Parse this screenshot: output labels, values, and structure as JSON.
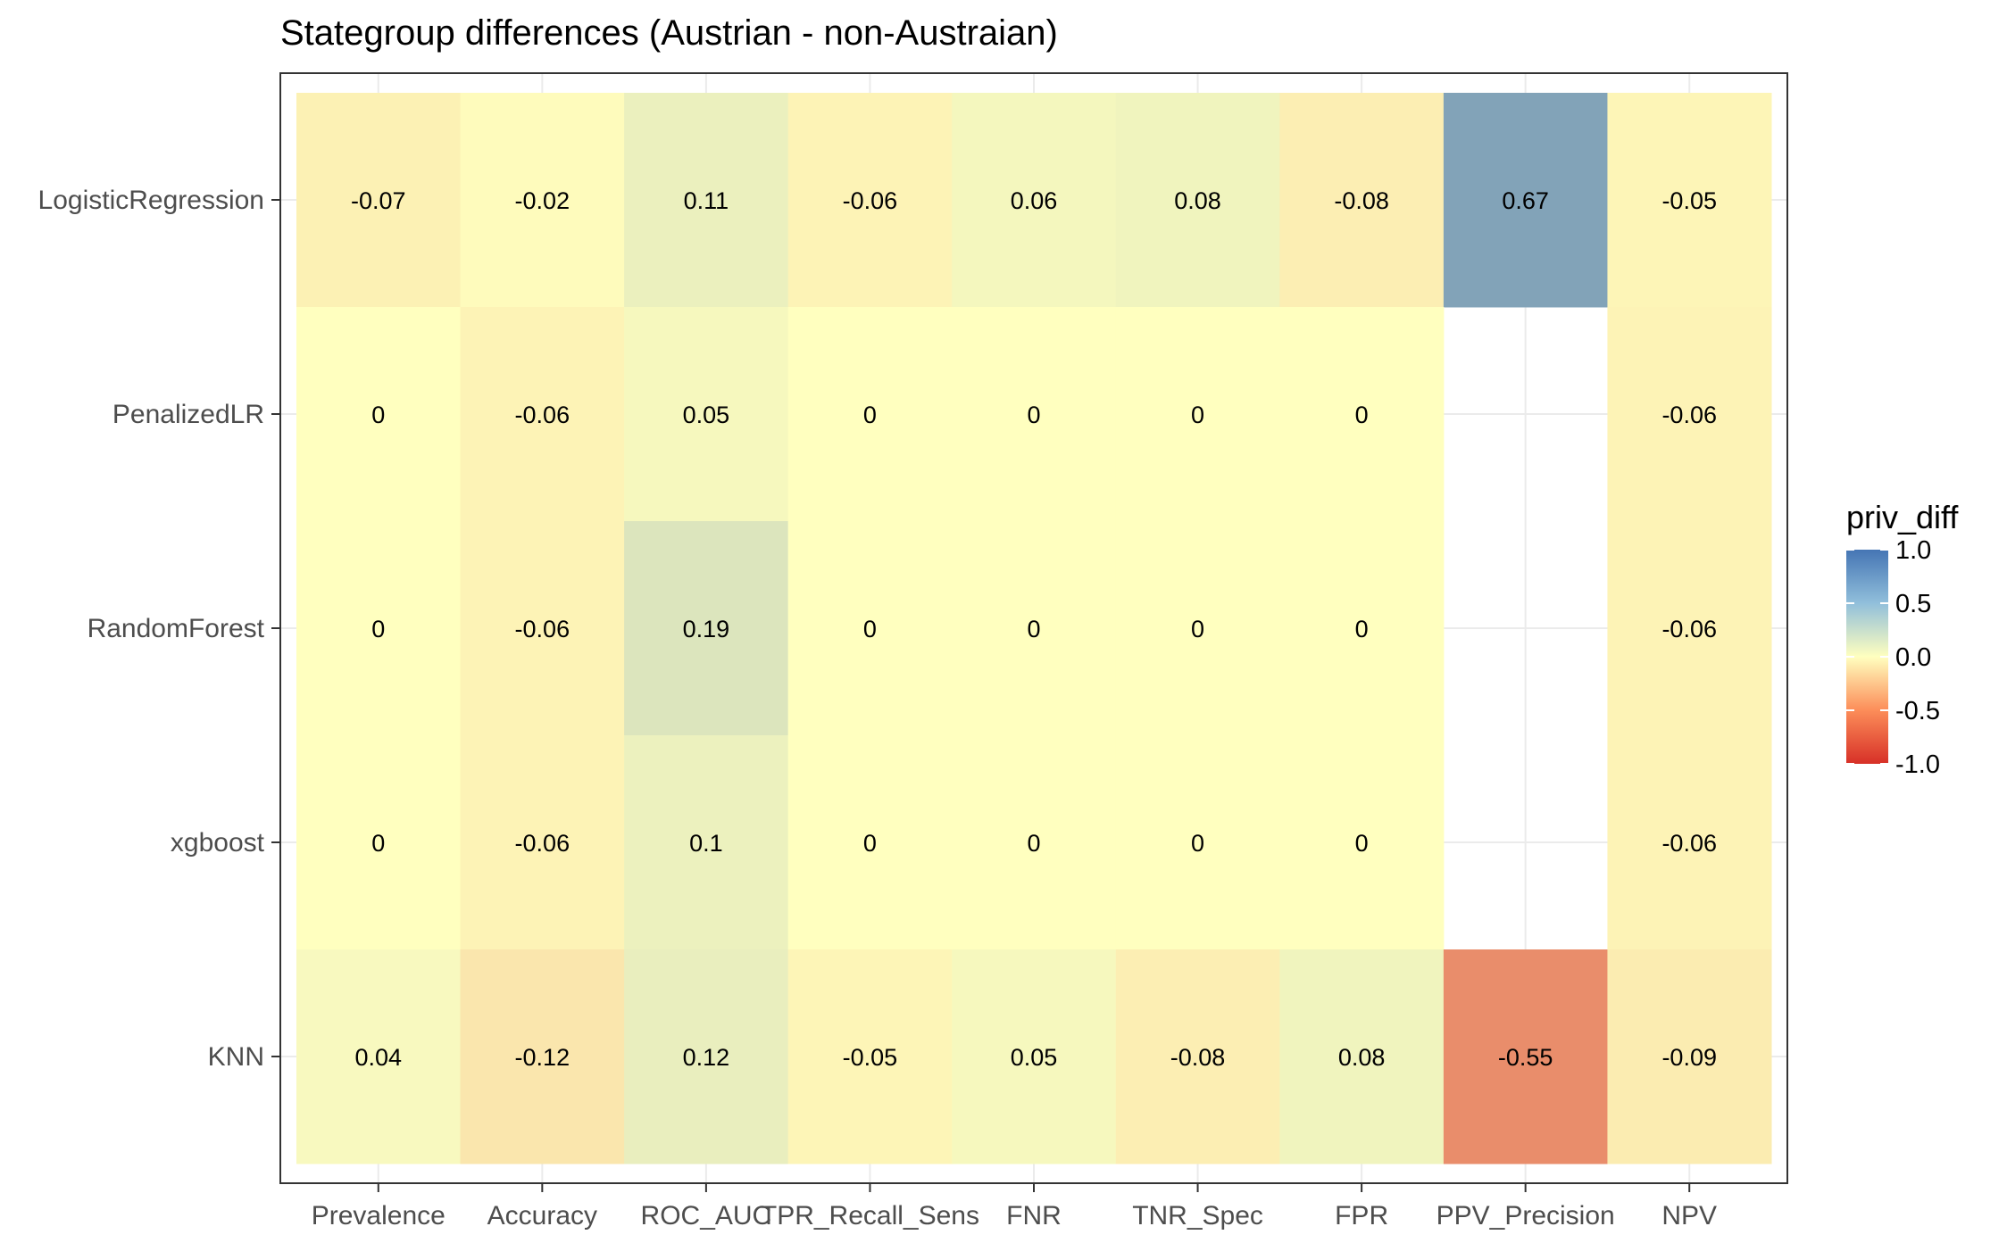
{
  "chart_data": {
    "type": "heatmap",
    "title": "Stategroup differences (Austrian - non-Austraian)",
    "x_categories": [
      "Prevalence",
      "Accuracy",
      "ROC_AUC",
      "TPR_Recall_Sens",
      "FNR",
      "TNR_Spec",
      "FPR",
      "PPV_Precision",
      "NPV"
    ],
    "y_categories": [
      "LogisticRegression",
      "PenalizedLR",
      "RandomForest",
      "xgboost",
      "KNN"
    ],
    "values": [
      [
        -0.07,
        -0.02,
        0.11,
        -0.06,
        0.06,
        0.08,
        -0.08,
        0.67,
        -0.05
      ],
      [
        0,
        -0.06,
        0.05,
        0,
        0,
        0,
        0,
        null,
        -0.06
      ],
      [
        0,
        -0.06,
        0.19,
        0,
        0,
        0,
        0,
        null,
        -0.06
      ],
      [
        0,
        -0.06,
        0.1,
        0,
        0,
        0,
        0,
        null,
        -0.06
      ],
      [
        0.04,
        -0.12,
        0.12,
        -0.05,
        0.05,
        -0.08,
        0.08,
        -0.55,
        -0.09
      ]
    ],
    "labels": [
      [
        "-0.07",
        "-0.02",
        "0.11",
        "-0.06",
        "0.06",
        "0.08",
        "-0.08",
        "0.67",
        "-0.05"
      ],
      [
        "0",
        "-0.06",
        "0.05",
        "0",
        "0",
        "0",
        "0",
        "",
        "-0.06"
      ],
      [
        "0",
        "-0.06",
        "0.19",
        "0",
        "0",
        "0",
        "0",
        "",
        "-0.06"
      ],
      [
        "0",
        "-0.06",
        "0.1",
        "0",
        "0",
        "0",
        "0",
        "",
        "-0.06"
      ],
      [
        "0.04",
        "-0.12",
        "0.12",
        "-0.05",
        "0.05",
        "-0.08",
        "0.08",
        "-0.55",
        "-0.09"
      ]
    ],
    "legend": {
      "title": "priv_diff",
      "position": "right",
      "range": [
        -1,
        1
      ],
      "ticks": [
        1,
        0.5,
        0,
        -0.5,
        -1
      ],
      "tick_labels": [
        "1.0",
        "0.5",
        "0.0",
        "-0.5",
        "-1.0"
      ]
    },
    "colorscale": {
      "low": "#d73027",
      "mid": "#ffffbf",
      "high": "#4575b4"
    },
    "grid": true
  }
}
